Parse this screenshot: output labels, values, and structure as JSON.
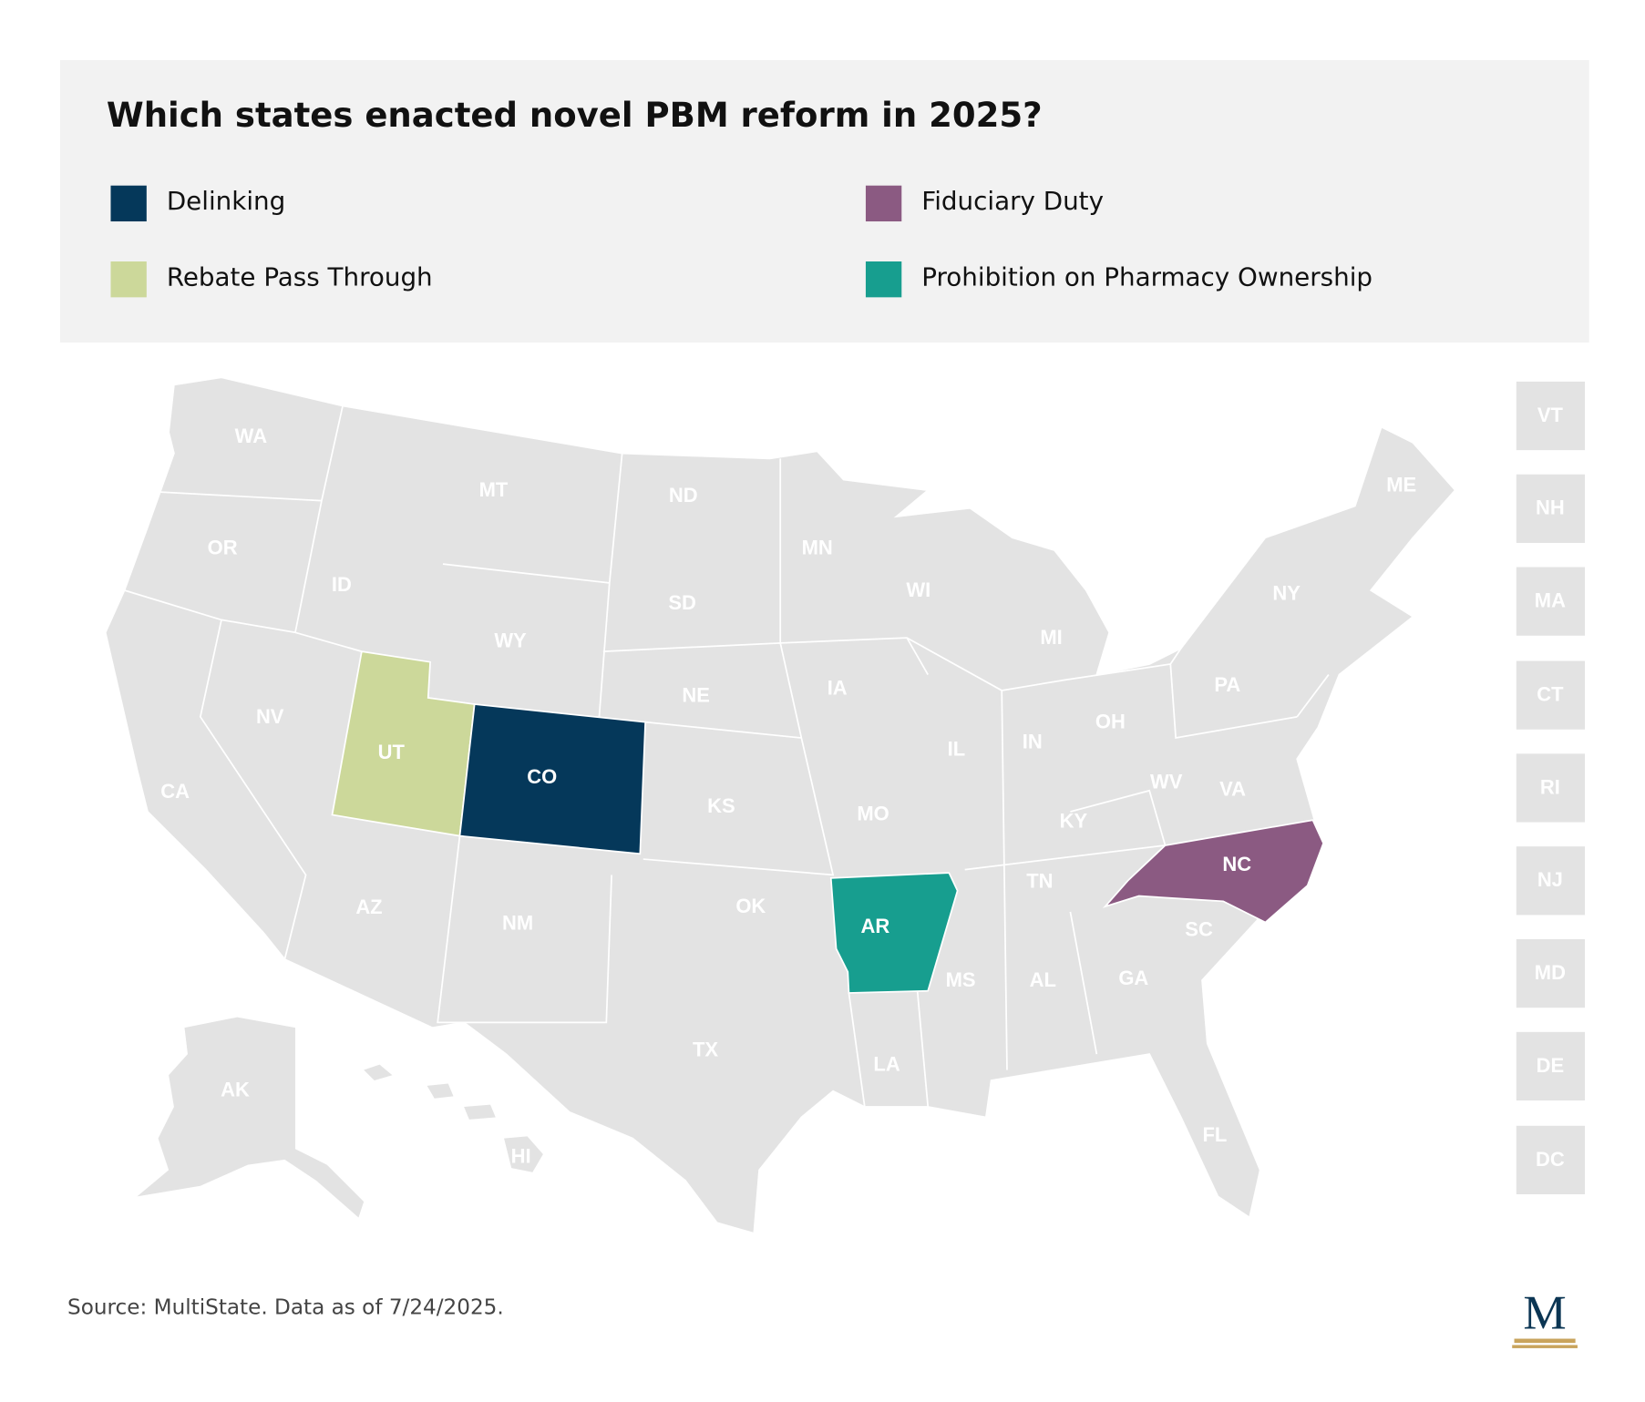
{
  "title": "Which states enacted novel PBM reform in 2025?",
  "legend": [
    {
      "name": "Delinking",
      "color": "#05385a"
    },
    {
      "name": "Fiduciary Duty",
      "color": "#8b5a82"
    },
    {
      "name": "Rebate Pass Through",
      "color": "#ccd89a"
    },
    {
      "name": "Prohibition on Pharmacy Ownership",
      "color": "#179e8f"
    }
  ],
  "base_color": "#e3e3e3",
  "states": [
    {
      "abbr": "WA"
    },
    {
      "abbr": "OR"
    },
    {
      "abbr": "CA"
    },
    {
      "abbr": "NV"
    },
    {
      "abbr": "ID"
    },
    {
      "abbr": "MT"
    },
    {
      "abbr": "WY"
    },
    {
      "abbr": "UT",
      "category": "Rebate Pass Through"
    },
    {
      "abbr": "CO",
      "category": "Delinking"
    },
    {
      "abbr": "AZ"
    },
    {
      "abbr": "NM"
    },
    {
      "abbr": "ND"
    },
    {
      "abbr": "SD"
    },
    {
      "abbr": "NE"
    },
    {
      "abbr": "KS"
    },
    {
      "abbr": "OK"
    },
    {
      "abbr": "TX"
    },
    {
      "abbr": "MN"
    },
    {
      "abbr": "IA"
    },
    {
      "abbr": "MO"
    },
    {
      "abbr": "AR",
      "category": "Prohibition on Pharmacy Ownership"
    },
    {
      "abbr": "LA"
    },
    {
      "abbr": "WI"
    },
    {
      "abbr": "IL"
    },
    {
      "abbr": "MS"
    },
    {
      "abbr": "MI"
    },
    {
      "abbr": "IN"
    },
    {
      "abbr": "OH"
    },
    {
      "abbr": "KY"
    },
    {
      "abbr": "TN"
    },
    {
      "abbr": "AL"
    },
    {
      "abbr": "GA"
    },
    {
      "abbr": "FL"
    },
    {
      "abbr": "SC"
    },
    {
      "abbr": "NC",
      "category": "Fiduciary Duty"
    },
    {
      "abbr": "WV"
    },
    {
      "abbr": "VA"
    },
    {
      "abbr": "PA"
    },
    {
      "abbr": "NY"
    },
    {
      "abbr": "ME"
    },
    {
      "abbr": "AK"
    },
    {
      "abbr": "HI"
    }
  ],
  "small_states": [
    {
      "abbr": "VT"
    },
    {
      "abbr": "NH"
    },
    {
      "abbr": "MA"
    },
    {
      "abbr": "CT"
    },
    {
      "abbr": "RI"
    },
    {
      "abbr": "NJ"
    },
    {
      "abbr": "MD"
    },
    {
      "abbr": "DE"
    },
    {
      "abbr": "DC"
    }
  ],
  "source": "Source: MultiState. Data as of 7/24/2025.",
  "logo": "M"
}
